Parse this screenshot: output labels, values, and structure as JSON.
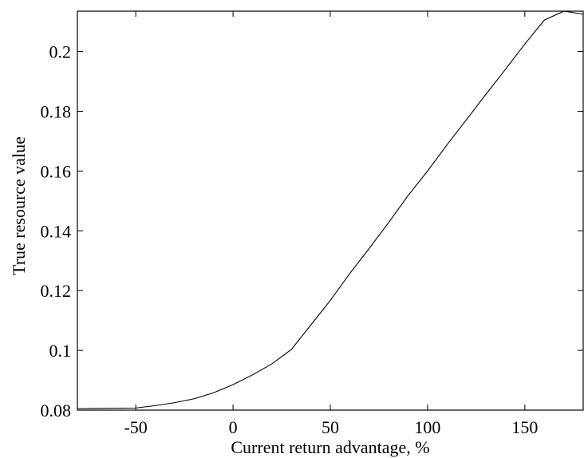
{
  "chart_data": {
    "type": "line",
    "title": "",
    "xlabel": "Current return advantage, %",
    "ylabel": "True resource value",
    "xlim": [
      -80,
      180
    ],
    "ylim": [
      0.08,
      0.2135
    ],
    "xticks": [
      -50,
      0,
      50,
      100,
      150
    ],
    "xtick_labels": [
      "-50",
      "0",
      "50",
      "100",
      "150"
    ],
    "yticks": [
      0.08,
      0.1,
      0.12,
      0.14,
      0.16,
      0.18,
      0.2
    ],
    "ytick_labels": [
      "0.08",
      "0.1",
      "0.12",
      "0.14",
      "0.16",
      "0.18",
      "0.2"
    ],
    "grid": false,
    "line_color": "#000000",
    "series": [
      {
        "x": [
          -80,
          -50,
          -40,
          -30,
          -20,
          -10,
          0,
          10,
          20,
          30,
          40,
          50,
          60,
          70,
          80,
          90,
          100,
          110,
          120,
          130,
          140,
          150,
          160,
          170,
          180
        ],
        "y": [
          0.0805,
          0.0807,
          0.0815,
          0.0825,
          0.0838,
          0.0858,
          0.0885,
          0.0918,
          0.0955,
          0.1003,
          0.1085,
          0.1167,
          0.1257,
          0.1341,
          0.1428,
          0.1518,
          0.16,
          0.1688,
          0.1772,
          0.1857,
          0.194,
          0.2025,
          0.2105,
          0.2167,
          0.2125
        ]
      }
    ]
  }
}
